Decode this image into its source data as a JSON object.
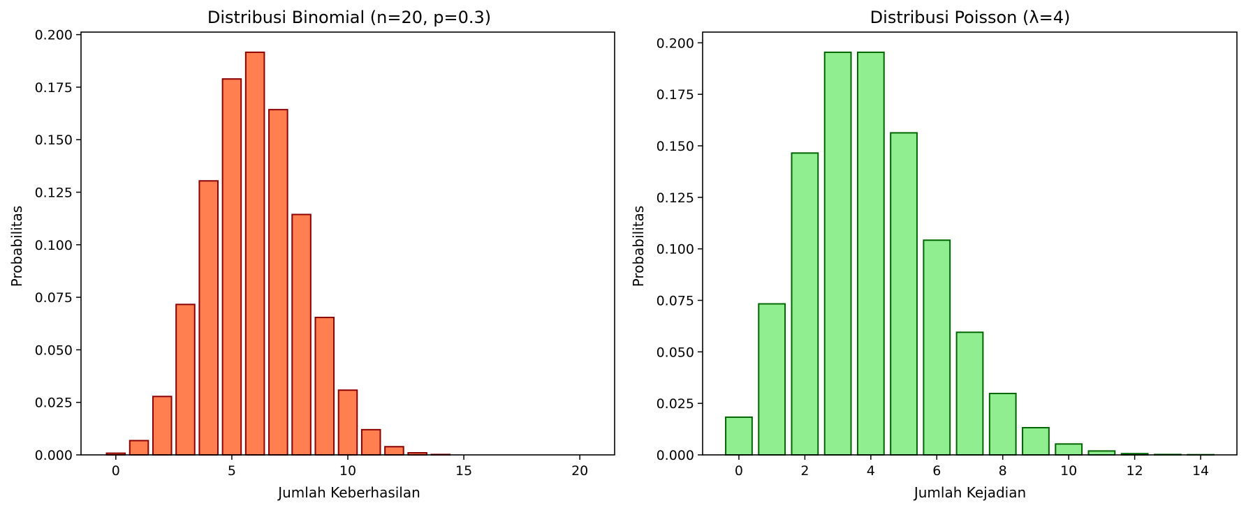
{
  "colors": {
    "binomial_fill": "#ff7f50",
    "binomial_edge": "#8b0000",
    "poisson_fill": "#90ee90",
    "poisson_edge": "#006400"
  },
  "chart_data": [
    {
      "type": "bar",
      "title": "Distribusi Binomial (n=20, p=0.3)",
      "xlabel": "Jumlah Keberhasilan",
      "ylabel": "Probabilitas",
      "x": [
        0,
        1,
        2,
        3,
        4,
        5,
        6,
        7,
        8,
        9,
        10,
        11,
        12,
        13,
        14,
        15,
        16,
        17,
        18,
        19,
        20
      ],
      "values": [
        0.0008,
        0.0068,
        0.0278,
        0.0716,
        0.1304,
        0.1789,
        0.1916,
        0.1643,
        0.1144,
        0.0654,
        0.0308,
        0.012,
        0.0039,
        0.001,
        0.0002,
        0.0,
        0.0,
        0.0,
        0.0,
        0.0,
        0.0
      ],
      "xlim": [
        -1.5,
        21.5
      ],
      "ylim": [
        0,
        0.2012
      ],
      "xticks": [
        0,
        5,
        10,
        15,
        20
      ],
      "xtick_labels": [
        "0",
        "5",
        "10",
        "15",
        "20"
      ],
      "yticks": [
        0,
        0.025,
        0.05,
        0.075,
        0.1,
        0.125,
        0.15,
        0.175,
        0.2
      ],
      "ytick_labels": [
        "0.000",
        "0.025",
        "0.050",
        "0.075",
        "0.100",
        "0.125",
        "0.150",
        "0.175",
        "0.200"
      ],
      "grid": false,
      "legend": "none"
    },
    {
      "type": "bar",
      "title": "Distribusi Poisson (λ=4)",
      "xlabel": "Jumlah Kejadian",
      "ylabel": "Probabilitas",
      "x": [
        0,
        1,
        2,
        3,
        4,
        5,
        6,
        7,
        8,
        9,
        10,
        11,
        12,
        13,
        14
      ],
      "values": [
        0.0183,
        0.0733,
        0.1465,
        0.1954,
        0.1954,
        0.1563,
        0.1042,
        0.0595,
        0.0298,
        0.0132,
        0.0053,
        0.0019,
        0.0006,
        0.0002,
        0.0001
      ],
      "xlim": [
        -1.1,
        15.1
      ],
      "ylim": [
        0,
        0.2052
      ],
      "xticks": [
        0,
        2,
        4,
        6,
        8,
        10,
        12,
        14
      ],
      "xtick_labels": [
        "0",
        "2",
        "4",
        "6",
        "8",
        "10",
        "12",
        "14"
      ],
      "yticks": [
        0,
        0.025,
        0.05,
        0.075,
        0.1,
        0.125,
        0.15,
        0.175,
        0.2
      ],
      "ytick_labels": [
        "0.000",
        "0.025",
        "0.050",
        "0.075",
        "0.100",
        "0.125",
        "0.150",
        "0.175",
        "0.200"
      ],
      "grid": false,
      "legend": "none"
    }
  ]
}
